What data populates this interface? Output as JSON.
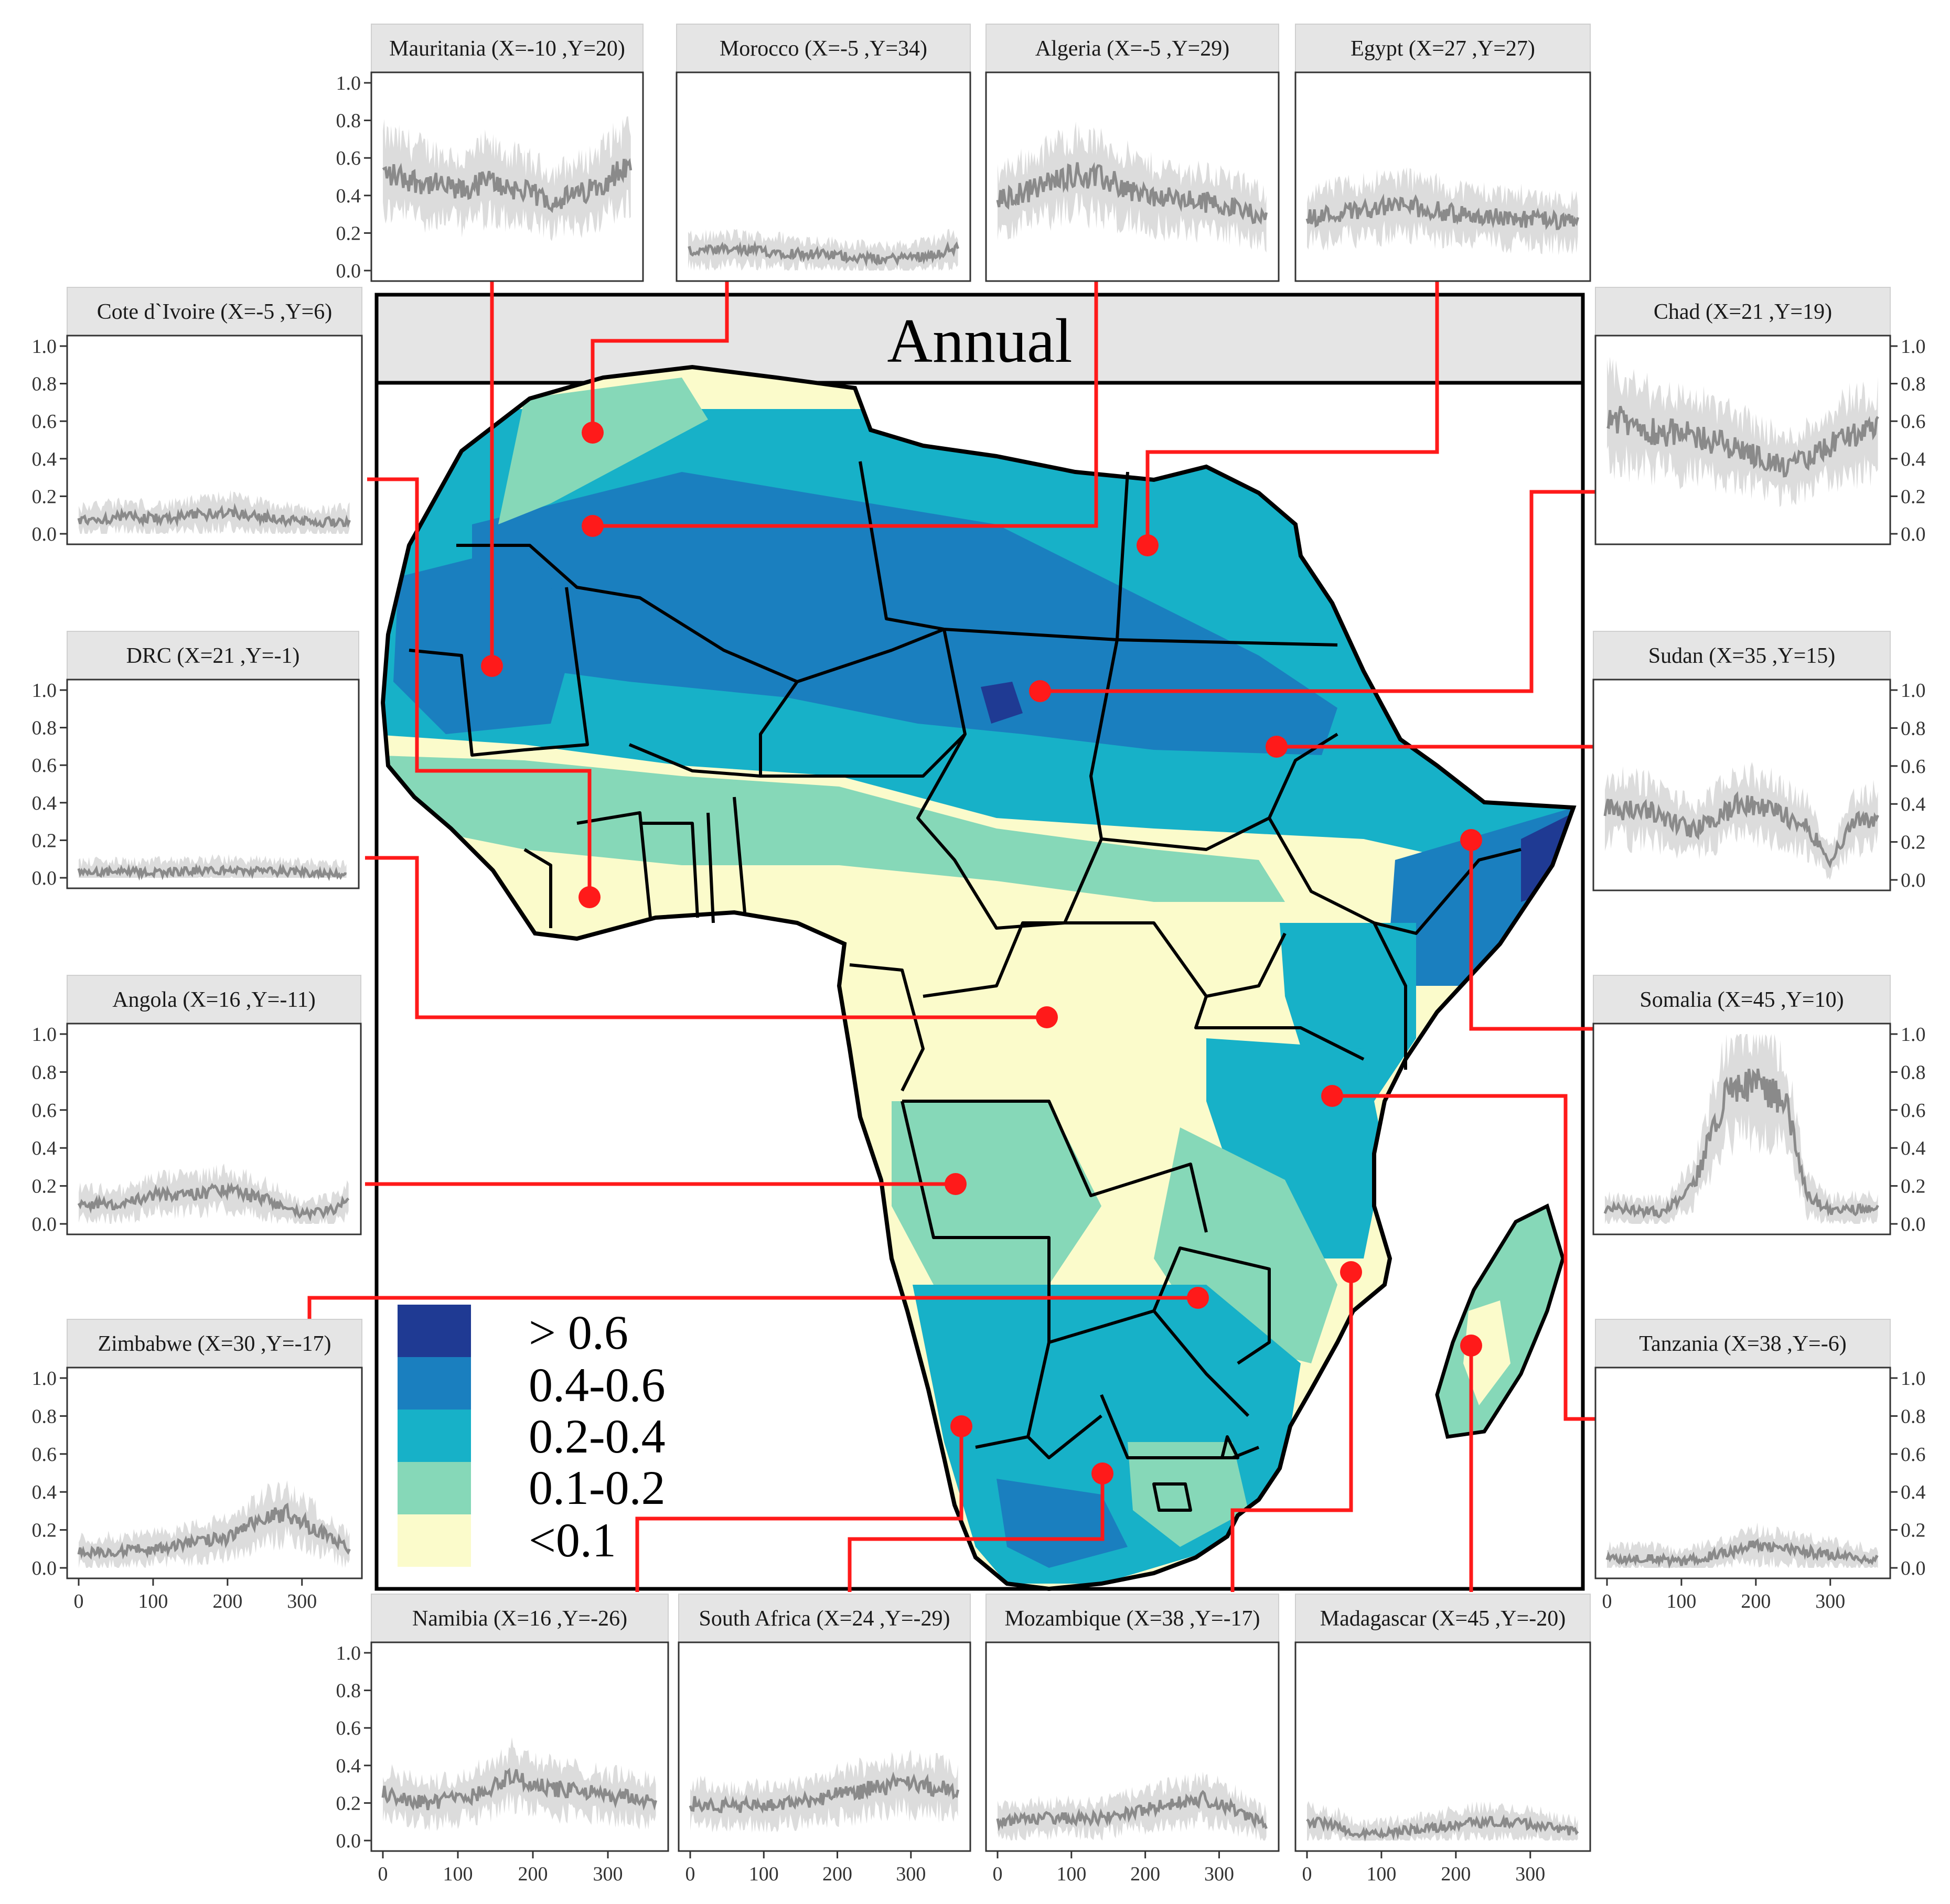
{
  "map": {
    "title": "Annual",
    "legend": [
      {
        "label": "> 0.6",
        "color": "#1f3a93"
      },
      {
        "label": "0.4-0.6",
        "color": "#1a7fbf"
      },
      {
        "label": "0.2-0.4",
        "color": "#17b1c8"
      },
      {
        "label": "0.1-0.2",
        "color": "#86d8b8"
      },
      {
        "label": "<0.1",
        "color": "#fbfbcb"
      }
    ],
    "marker_color": "#ff1a1a",
    "border_color": "#000000"
  },
  "chart_data": {
    "type": "line",
    "x_ticks": [
      0,
      100,
      200,
      300
    ],
    "y_ticks": [
      "0.0",
      "0.2",
      "0.4",
      "0.6",
      "0.8",
      "1.0"
    ],
    "xlim": [
      0,
      365
    ],
    "ylim": [
      0,
      1
    ],
    "line_color": "#8a8a8a",
    "band_color": "#dcdcdc",
    "panels": [
      {
        "id": "mauritania",
        "title": "Mauritania (X=-10 ,Y=20)",
        "knots": [
          [
            0,
            0.52
          ],
          [
            60,
            0.47
          ],
          [
            120,
            0.42
          ],
          [
            150,
            0.48
          ],
          [
            200,
            0.43
          ],
          [
            250,
            0.37
          ],
          [
            300,
            0.42
          ],
          [
            365,
            0.57
          ]
        ]
      },
      {
        "id": "morocco",
        "title": "Morocco (X=-5 ,Y=34)",
        "knots": [
          [
            0,
            0.1
          ],
          [
            60,
            0.11
          ],
          [
            120,
            0.1
          ],
          [
            200,
            0.08
          ],
          [
            260,
            0.06
          ],
          [
            320,
            0.08
          ],
          [
            365,
            0.12
          ]
        ]
      },
      {
        "id": "algeria",
        "title": "Algeria (X=-5 ,Y=29)",
        "knots": [
          [
            0,
            0.37
          ],
          [
            60,
            0.45
          ],
          [
            100,
            0.52
          ],
          [
            150,
            0.48
          ],
          [
            200,
            0.4
          ],
          [
            260,
            0.37
          ],
          [
            300,
            0.36
          ],
          [
            365,
            0.28
          ]
        ]
      },
      {
        "id": "egypt",
        "title": "Egypt (X=27 ,Y=27)",
        "knots": [
          [
            0,
            0.28
          ],
          [
            80,
            0.33
          ],
          [
            130,
            0.35
          ],
          [
            200,
            0.3
          ],
          [
            270,
            0.28
          ],
          [
            320,
            0.27
          ],
          [
            365,
            0.25
          ]
        ]
      },
      {
        "id": "cote",
        "title": "Cote d`Ivoire (X=-5 ,Y=6)",
        "knots": [
          [
            0,
            0.07
          ],
          [
            60,
            0.09
          ],
          [
            120,
            0.08
          ],
          [
            200,
            0.12
          ],
          [
            260,
            0.08
          ],
          [
            320,
            0.06
          ],
          [
            365,
            0.07
          ]
        ]
      },
      {
        "id": "chad",
        "title": "Chad (X=21 ,Y=19)",
        "knots": [
          [
            0,
            0.62
          ],
          [
            60,
            0.55
          ],
          [
            120,
            0.52
          ],
          [
            180,
            0.45
          ],
          [
            240,
            0.35
          ],
          [
            280,
            0.42
          ],
          [
            320,
            0.52
          ],
          [
            365,
            0.55
          ]
        ]
      },
      {
        "id": "drc",
        "title": "DRC (X=21 ,Y=-1)",
        "knots": [
          [
            0,
            0.03
          ],
          [
            100,
            0.03
          ],
          [
            200,
            0.04
          ],
          [
            300,
            0.03
          ],
          [
            365,
            0.02
          ]
        ]
      },
      {
        "id": "sudan",
        "title": "Sudan (X=35 ,Y=15)",
        "knots": [
          [
            0,
            0.38
          ],
          [
            60,
            0.36
          ],
          [
            120,
            0.26
          ],
          [
            180,
            0.4
          ],
          [
            230,
            0.36
          ],
          [
            270,
            0.28
          ],
          [
            300,
            0.1
          ],
          [
            330,
            0.3
          ],
          [
            365,
            0.33
          ]
        ]
      },
      {
        "id": "angola",
        "title": "Angola (X=16 ,Y=-11)",
        "knots": [
          [
            0,
            0.11
          ],
          [
            60,
            0.1
          ],
          [
            100,
            0.15
          ],
          [
            160,
            0.16
          ],
          [
            200,
            0.18
          ],
          [
            260,
            0.12
          ],
          [
            300,
            0.05
          ],
          [
            340,
            0.07
          ],
          [
            365,
            0.12
          ]
        ]
      },
      {
        "id": "somalia",
        "title": "Somalia (X=45 ,Y=10)",
        "knots": [
          [
            0,
            0.08
          ],
          [
            80,
            0.06
          ],
          [
            120,
            0.22
          ],
          [
            160,
            0.68
          ],
          [
            200,
            0.75
          ],
          [
            240,
            0.65
          ],
          [
            270,
            0.15
          ],
          [
            300,
            0.07
          ],
          [
            365,
            0.08
          ]
        ]
      },
      {
        "id": "zimbabwe",
        "title": "Zimbabwe (X=30 ,Y=-17)",
        "knots": [
          [
            0,
            0.08
          ],
          [
            100,
            0.1
          ],
          [
            200,
            0.16
          ],
          [
            250,
            0.26
          ],
          [
            280,
            0.29
          ],
          [
            320,
            0.2
          ],
          [
            365,
            0.09
          ]
        ]
      },
      {
        "id": "tanzania",
        "title": "Tanzania (X=38 ,Y=-6)",
        "knots": [
          [
            0,
            0.05
          ],
          [
            60,
            0.05
          ],
          [
            100,
            0.03
          ],
          [
            160,
            0.08
          ],
          [
            200,
            0.12
          ],
          [
            260,
            0.09
          ],
          [
            320,
            0.06
          ],
          [
            365,
            0.04
          ]
        ]
      },
      {
        "id": "namibia",
        "title": "Namibia (X=16 ,Y=-26)",
        "knots": [
          [
            0,
            0.25
          ],
          [
            60,
            0.2
          ],
          [
            120,
            0.24
          ],
          [
            170,
            0.34
          ],
          [
            220,
            0.28
          ],
          [
            300,
            0.24
          ],
          [
            365,
            0.21
          ]
        ]
      },
      {
        "id": "southafrica",
        "title": "South Africa (X=24 ,Y=-29)",
        "knots": [
          [
            0,
            0.2
          ],
          [
            60,
            0.18
          ],
          [
            120,
            0.19
          ],
          [
            200,
            0.24
          ],
          [
            280,
            0.3
          ],
          [
            340,
            0.28
          ],
          [
            365,
            0.25
          ]
        ]
      },
      {
        "id": "mozambique",
        "title": "Mozambique (X=38 ,Y=-17)",
        "knots": [
          [
            0,
            0.1
          ],
          [
            60,
            0.12
          ],
          [
            140,
            0.12
          ],
          [
            220,
            0.18
          ],
          [
            280,
            0.22
          ],
          [
            330,
            0.15
          ],
          [
            365,
            0.08
          ]
        ]
      },
      {
        "id": "madagascar",
        "title": "Madagascar (X=45 ,Y=-20)",
        "knots": [
          [
            0,
            0.1
          ],
          [
            40,
            0.08
          ],
          [
            70,
            0.03
          ],
          [
            150,
            0.06
          ],
          [
            230,
            0.1
          ],
          [
            300,
            0.09
          ],
          [
            365,
            0.04
          ]
        ]
      }
    ]
  }
}
